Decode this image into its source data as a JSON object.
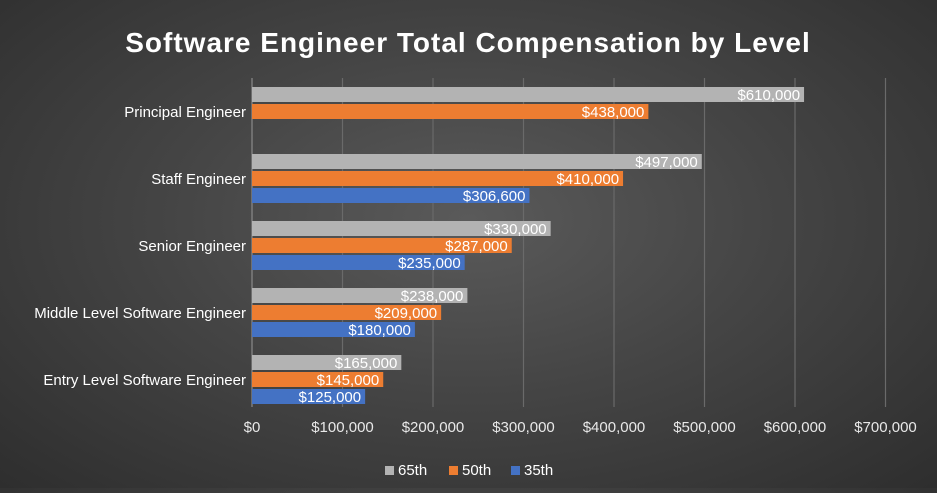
{
  "chart_data": {
    "type": "bar",
    "orientation": "horizontal",
    "title": "Software Engineer Total Compensation by Level",
    "categories": [
      "Principal Engineer",
      "Staff Engineer",
      "Senior Engineer",
      "Middle Level Software Engineer",
      "Entry Level Software Engineer"
    ],
    "series": [
      {
        "name": "65th",
        "color": "#b3b3b3",
        "values": [
          610000,
          497000,
          330000,
          238000,
          165000
        ],
        "labels": [
          "$610,000",
          "$497,000",
          "$330,000",
          "$238,000",
          "$165,000"
        ]
      },
      {
        "name": "50th",
        "color": "#ed7d31",
        "values": [
          438000,
          410000,
          287000,
          209000,
          145000
        ],
        "labels": [
          "$438,000",
          "$410,000",
          "$287,000",
          "$209,000",
          "$145,000"
        ]
      },
      {
        "name": "35th",
        "color": "#4472c4",
        "values": [
          null,
          306600,
          235000,
          180000,
          125000
        ],
        "labels": [
          "",
          "$306,600",
          "$235,000",
          "$180,000",
          "$125,000"
        ]
      }
    ],
    "xlim": [
      0,
      700000
    ],
    "xticks": [
      0,
      100000,
      200000,
      300000,
      400000,
      500000,
      600000,
      700000
    ],
    "xtick_labels": [
      "$0",
      "$100,000",
      "$200,000",
      "$300,000",
      "$400,000",
      "$500,000",
      "$600,000",
      "$700,000"
    ],
    "grid": true,
    "legend_position": "bottom"
  }
}
